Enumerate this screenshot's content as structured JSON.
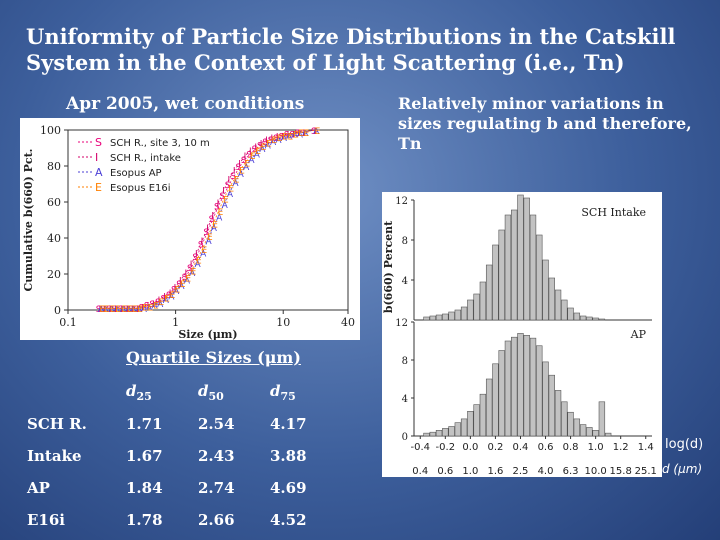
{
  "title": "Uniformity of Particle Size Distributions in the Catskill System in the Context of Light Scattering (i.e., Tn)",
  "left_subtitle": "Apr 2005, wet conditions",
  "right_note": "Relatively minor variations in sizes regulating b and therefore, Tn",
  "quartile": {
    "heading": "Quartile Sizes (μm)",
    "headers": [
      "",
      "d25",
      "d50",
      "d75"
    ],
    "rows": [
      [
        "SCH R.",
        "1.71",
        "2.54",
        "4.17"
      ],
      [
        "Intake",
        "1.67",
        "2.43",
        "3.88"
      ],
      [
        "AP",
        "1.84",
        "2.74",
        "4.69"
      ],
      [
        "E16i",
        "1.78",
        "2.66",
        "4.52"
      ]
    ]
  },
  "chart_data": [
    {
      "type": "line",
      "xlabel": "Size (μm)",
      "ylabel": "Cumulative b(660) Pct.",
      "xscale": "log",
      "xlim": [
        0.1,
        40
      ],
      "ylim": [
        0,
        100
      ],
      "xticks": [
        "0.1",
        "1",
        "10",
        "40"
      ],
      "yticks": [
        "0",
        "20",
        "40",
        "60",
        "80",
        "100"
      ],
      "legend_position": "top-left",
      "x": [
        0.2,
        0.22,
        0.25,
        0.28,
        0.32,
        0.36,
        0.4,
        0.45,
        0.5,
        0.56,
        0.63,
        0.71,
        0.8,
        0.9,
        1.0,
        1.12,
        1.26,
        1.41,
        1.58,
        1.78,
        2.0,
        2.24,
        2.51,
        2.82,
        3.16,
        3.55,
        3.98,
        4.47,
        5.01,
        5.62,
        6.31,
        7.08,
        7.94,
        8.91,
        10.0,
        11.2,
        12.6,
        14.1,
        15.8,
        20.0
      ],
      "series": [
        {
          "name": "SCH R., site 3, 10 m",
          "marker": "S",
          "color": "#e8007a",
          "values": [
            1,
            1,
            1,
            1,
            1,
            1,
            1,
            1,
            2,
            3,
            4,
            5,
            7,
            9,
            12,
            15,
            19,
            24,
            30,
            37,
            44,
            51,
            58,
            64,
            70,
            75,
            80,
            84,
            87,
            90,
            92,
            94,
            95,
            96,
            97,
            98,
            98,
            99,
            99,
            100
          ]
        },
        {
          "name": "SCH R., intake",
          "marker": "I",
          "color": "#d4006a",
          "values": [
            1,
            1,
            1,
            1,
            1,
            1,
            1,
            1,
            2,
            3,
            4,
            6,
            8,
            10,
            13,
            17,
            21,
            26,
            32,
            39,
            46,
            53,
            60,
            67,
            73,
            78,
            82,
            86,
            89,
            91,
            93,
            95,
            96,
            97,
            97,
            98,
            98,
            99,
            99,
            100
          ]
        },
        {
          "name": "Esopus AP",
          "marker": "A",
          "color": "#4b3fd6",
          "values": [
            1,
            1,
            1,
            1,
            1,
            1,
            1,
            1,
            1,
            2,
            3,
            4,
            6,
            8,
            11,
            14,
            17,
            21,
            26,
            32,
            39,
            46,
            52,
            59,
            65,
            71,
            76,
            80,
            84,
            87,
            90,
            92,
            94,
            95,
            96,
            97,
            98,
            98,
            99,
            100
          ]
        },
        {
          "name": "Esopus E16i",
          "marker": "E",
          "color": "#ff7f00",
          "values": [
            1,
            1,
            1,
            1,
            1,
            1,
            1,
            1,
            2,
            2,
            3,
            5,
            7,
            9,
            12,
            15,
            18,
            22,
            28,
            34,
            41,
            48,
            55,
            62,
            68,
            73,
            78,
            82,
            86,
            89,
            91,
            93,
            95,
            96,
            97,
            97,
            98,
            99,
            99,
            100
          ]
        }
      ]
    },
    {
      "type": "bar",
      "label": "SCH Intake",
      "ylabel": "b(660) Percent",
      "ylim": [
        0,
        12
      ],
      "yticks": [
        "4",
        "8",
        "12"
      ],
      "x": [
        -0.35,
        -0.3,
        -0.25,
        -0.2,
        -0.15,
        -0.1,
        -0.05,
        0.0,
        0.05,
        0.1,
        0.15,
        0.2,
        0.25,
        0.3,
        0.35,
        0.4,
        0.45,
        0.5,
        0.55,
        0.6,
        0.65,
        0.7,
        0.75,
        0.8,
        0.85,
        0.9,
        0.95,
        1.0,
        1.05
      ],
      "values": [
        0.3,
        0.4,
        0.5,
        0.6,
        0.8,
        1.0,
        1.3,
        2.0,
        2.6,
        3.8,
        5.5,
        7.5,
        9.0,
        10.5,
        11.0,
        12.5,
        12.2,
        10.5,
        8.5,
        6.0,
        4.2,
        3.0,
        2.0,
        1.2,
        0.7,
        0.4,
        0.3,
        0.2,
        0.1
      ]
    },
    {
      "type": "bar",
      "label": "AP",
      "ylabel": "b(660) Percent",
      "ylim": [
        0,
        12
      ],
      "yticks": [
        "0",
        "4",
        "8",
        "12"
      ],
      "xlabel": "log(d)",
      "xticks": [
        "-0.4",
        "-0.2",
        "0.0",
        "0.2",
        "0.4",
        "0.6",
        "0.8",
        "1.0",
        "1.2",
        "1.4"
      ],
      "secondary_xlabel": "d (μm)",
      "secondary_xticks": [
        "0.4",
        "0.6",
        "1.0",
        "1.6",
        "2.5",
        "4.0",
        "6.3",
        "10.0",
        "15.8",
        "25.1"
      ],
      "x": [
        -0.35,
        -0.3,
        -0.25,
        -0.2,
        -0.15,
        -0.1,
        -0.05,
        0.0,
        0.05,
        0.1,
        0.15,
        0.2,
        0.25,
        0.3,
        0.35,
        0.4,
        0.45,
        0.5,
        0.55,
        0.6,
        0.65,
        0.7,
        0.75,
        0.8,
        0.85,
        0.9,
        0.95,
        1.0,
        1.05,
        1.1
      ],
      "values": [
        0.3,
        0.4,
        0.6,
        0.8,
        1.0,
        1.4,
        1.8,
        2.6,
        3.3,
        4.4,
        6.0,
        7.6,
        9.0,
        10.0,
        10.4,
        10.8,
        10.6,
        10.3,
        9.5,
        7.8,
        6.4,
        4.8,
        3.6,
        2.5,
        1.8,
        1.2,
        0.9,
        0.6,
        3.6,
        0.3
      ]
    }
  ]
}
